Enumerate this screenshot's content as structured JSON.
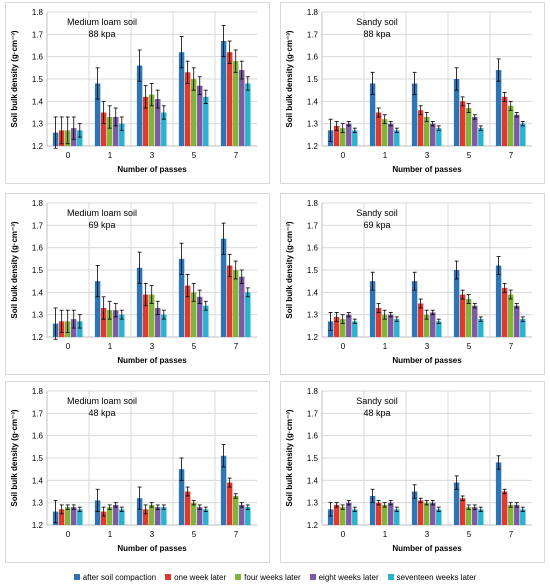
{
  "colors": [
    "#2e75b6",
    "#e03a2f",
    "#7fb539",
    "#7d5aa6",
    "#2ab3cf"
  ],
  "legend": [
    "after soil compaction",
    "one week later",
    "four weeks later",
    "eight weeks later",
    "seventeen weeks later"
  ],
  "chart_data": [
    {
      "type": "bar",
      "title_line1": "Medium loam soil",
      "title_line2": "88 kpa",
      "xlabel": "Number of passes",
      "ylabel": "Soil bulk density (g·cm⁻³)",
      "ylim": [
        1.2,
        1.8
      ],
      "yticks": [
        1.2,
        1.3,
        1.4,
        1.5,
        1.6,
        1.7,
        1.8
      ],
      "categories": [
        "0",
        "1",
        "3",
        "5",
        "7"
      ],
      "grid": true,
      "series": [
        {
          "name": "after soil compaction",
          "values": [
            1.26,
            1.48,
            1.56,
            1.62,
            1.67
          ],
          "errors": [
            0.07,
            0.07,
            0.07,
            0.07,
            0.07
          ]
        },
        {
          "name": "one week later",
          "values": [
            1.27,
            1.35,
            1.42,
            1.53,
            1.62
          ],
          "errors": [
            0.06,
            0.05,
            0.05,
            0.05,
            0.05
          ]
        },
        {
          "name": "four weeks later",
          "values": [
            1.27,
            1.33,
            1.43,
            1.5,
            1.58
          ],
          "errors": [
            0.06,
            0.05,
            0.05,
            0.05,
            0.05
          ]
        },
        {
          "name": "eight weeks later",
          "values": [
            1.28,
            1.33,
            1.41,
            1.47,
            1.54
          ],
          "errors": [
            0.05,
            0.04,
            0.04,
            0.04,
            0.04
          ]
        },
        {
          "name": "seventeen weeks later",
          "values": [
            1.27,
            1.3,
            1.35,
            1.42,
            1.48
          ],
          "errors": [
            0.03,
            0.03,
            0.03,
            0.03,
            0.03
          ]
        }
      ]
    },
    {
      "type": "bar",
      "title_line1": "Sandy soil",
      "title_line2": "88 kpa",
      "xlabel": "Number of passes",
      "ylabel": "Soil bulk density (g·cm⁻³)",
      "ylim": [
        1.2,
        1.8
      ],
      "yticks": [
        1.2,
        1.3,
        1.4,
        1.5,
        1.6,
        1.7,
        1.8
      ],
      "categories": [
        "0",
        "1",
        "3",
        "5",
        "7"
      ],
      "grid": true,
      "series": [
        {
          "name": "after soil compaction",
          "values": [
            1.27,
            1.48,
            1.48,
            1.5,
            1.54
          ],
          "errors": [
            0.05,
            0.05,
            0.05,
            0.05,
            0.05
          ]
        },
        {
          "name": "one week later",
          "values": [
            1.29,
            1.35,
            1.36,
            1.4,
            1.42
          ],
          "errors": [
            0.02,
            0.02,
            0.02,
            0.02,
            0.02
          ]
        },
        {
          "name": "four weeks later",
          "values": [
            1.28,
            1.32,
            1.33,
            1.37,
            1.38
          ],
          "errors": [
            0.02,
            0.02,
            0.02,
            0.02,
            0.02
          ]
        },
        {
          "name": "eight weeks later",
          "values": [
            1.3,
            1.3,
            1.3,
            1.33,
            1.34
          ],
          "errors": [
            0.01,
            0.01,
            0.01,
            0.01,
            0.01
          ]
        },
        {
          "name": "seventeen weeks later",
          "values": [
            1.27,
            1.27,
            1.28,
            1.28,
            1.3
          ],
          "errors": [
            0.01,
            0.01,
            0.01,
            0.01,
            0.01
          ]
        }
      ]
    },
    {
      "type": "bar",
      "title_line1": "Medium loam soil",
      "title_line2": "69 kpa",
      "xlabel": "Number of passes",
      "ylabel": "Soil bulk density (g·cm⁻³)",
      "ylim": [
        1.2,
        1.8
      ],
      "yticks": [
        1.2,
        1.3,
        1.4,
        1.5,
        1.6,
        1.7,
        1.8
      ],
      "categories": [
        "0",
        "1",
        "3",
        "5",
        "7"
      ],
      "grid": true,
      "series": [
        {
          "name": "after soil compaction",
          "values": [
            1.26,
            1.45,
            1.51,
            1.55,
            1.64
          ],
          "errors": [
            0.07,
            0.07,
            0.07,
            0.07,
            0.07
          ]
        },
        {
          "name": "one week later",
          "values": [
            1.27,
            1.33,
            1.39,
            1.43,
            1.52
          ],
          "errors": [
            0.05,
            0.05,
            0.05,
            0.05,
            0.05
          ]
        },
        {
          "name": "four weeks later",
          "values": [
            1.27,
            1.32,
            1.39,
            1.4,
            1.5
          ],
          "errors": [
            0.05,
            0.04,
            0.04,
            0.04,
            0.04
          ]
        },
        {
          "name": "eight weeks later",
          "values": [
            1.28,
            1.32,
            1.33,
            1.38,
            1.47
          ],
          "errors": [
            0.04,
            0.03,
            0.03,
            0.03,
            0.03
          ]
        },
        {
          "name": "seventeen weeks later",
          "values": [
            1.27,
            1.3,
            1.3,
            1.34,
            1.4
          ],
          "errors": [
            0.03,
            0.02,
            0.02,
            0.02,
            0.02
          ]
        }
      ]
    },
    {
      "type": "bar",
      "title_line1": "Sandy soil",
      "title_line2": "69 kpa",
      "xlabel": "Number of passes",
      "ylabel": "Soil bulk density (g·cm⁻³)",
      "ylim": [
        1.2,
        1.8
      ],
      "yticks": [
        1.2,
        1.3,
        1.4,
        1.5,
        1.6,
        1.7,
        1.8
      ],
      "categories": [
        "0",
        "1",
        "3",
        "5",
        "7"
      ],
      "grid": true,
      "series": [
        {
          "name": "after soil compaction",
          "values": [
            1.27,
            1.45,
            1.45,
            1.5,
            1.52
          ],
          "errors": [
            0.04,
            0.04,
            0.04,
            0.04,
            0.04
          ]
        },
        {
          "name": "one week later",
          "values": [
            1.29,
            1.33,
            1.35,
            1.39,
            1.42
          ],
          "errors": [
            0.02,
            0.02,
            0.02,
            0.02,
            0.02
          ]
        },
        {
          "name": "four weeks later",
          "values": [
            1.28,
            1.3,
            1.3,
            1.37,
            1.39
          ],
          "errors": [
            0.02,
            0.02,
            0.02,
            0.02,
            0.02
          ]
        },
        {
          "name": "eight weeks later",
          "values": [
            1.3,
            1.3,
            1.31,
            1.34,
            1.34
          ],
          "errors": [
            0.01,
            0.01,
            0.01,
            0.01,
            0.01
          ]
        },
        {
          "name": "seventeen weeks later",
          "values": [
            1.27,
            1.28,
            1.27,
            1.28,
            1.28
          ],
          "errors": [
            0.01,
            0.01,
            0.01,
            0.01,
            0.01
          ]
        }
      ]
    },
    {
      "type": "bar",
      "title_line1": "Medium loam soil",
      "title_line2": "48 kpa",
      "xlabel": "Number of passes",
      "ylabel": "Soil bulk density (g·cm⁻³)",
      "ylim": [
        1.2,
        1.8
      ],
      "yticks": [
        1.2,
        1.3,
        1.4,
        1.5,
        1.6,
        1.7,
        1.8
      ],
      "categories": [
        "0",
        "1",
        "3",
        "5",
        "7"
      ],
      "grid": true,
      "series": [
        {
          "name": "after soil compaction",
          "values": [
            1.26,
            1.31,
            1.32,
            1.45,
            1.51
          ],
          "errors": [
            0.05,
            0.05,
            0.05,
            0.05,
            0.05
          ]
        },
        {
          "name": "one week later",
          "values": [
            1.27,
            1.26,
            1.27,
            1.35,
            1.39
          ],
          "errors": [
            0.02,
            0.02,
            0.02,
            0.02,
            0.02
          ]
        },
        {
          "name": "four weeks later",
          "values": [
            1.28,
            1.28,
            1.29,
            1.3,
            1.33
          ],
          "errors": [
            0.01,
            0.01,
            0.01,
            0.01,
            0.01
          ]
        },
        {
          "name": "eight weeks later",
          "values": [
            1.28,
            1.29,
            1.28,
            1.28,
            1.29
          ],
          "errors": [
            0.01,
            0.01,
            0.01,
            0.01,
            0.01
          ]
        },
        {
          "name": "seventeen weeks later",
          "values": [
            1.27,
            1.27,
            1.28,
            1.27,
            1.28
          ],
          "errors": [
            0.01,
            0.01,
            0.01,
            0.01,
            0.01
          ]
        }
      ]
    },
    {
      "type": "bar",
      "title_line1": "Sandy soil",
      "title_line2": "48 kpa",
      "xlabel": "Number of passes",
      "ylabel": "Soil bulk density (g·cm⁻³)",
      "ylim": [
        1.2,
        1.8
      ],
      "yticks": [
        1.2,
        1.3,
        1.4,
        1.5,
        1.6,
        1.7,
        1.8
      ],
      "categories": [
        "0",
        "1",
        "3",
        "5",
        "7"
      ],
      "grid": true,
      "series": [
        {
          "name": "after soil compaction",
          "values": [
            1.27,
            1.33,
            1.35,
            1.39,
            1.48
          ],
          "errors": [
            0.03,
            0.03,
            0.03,
            0.03,
            0.03
          ]
        },
        {
          "name": "one week later",
          "values": [
            1.29,
            1.3,
            1.31,
            1.32,
            1.35
          ],
          "errors": [
            0.01,
            0.01,
            0.01,
            0.01,
            0.01
          ]
        },
        {
          "name": "four weeks later",
          "values": [
            1.28,
            1.29,
            1.3,
            1.28,
            1.29
          ],
          "errors": [
            0.01,
            0.01,
            0.01,
            0.01,
            0.01
          ]
        },
        {
          "name": "eight weeks later",
          "values": [
            1.3,
            1.3,
            1.3,
            1.28,
            1.29
          ],
          "errors": [
            0.01,
            0.01,
            0.01,
            0.01,
            0.01
          ]
        },
        {
          "name": "seventeen weeks later",
          "values": [
            1.27,
            1.27,
            1.27,
            1.27,
            1.27
          ],
          "errors": [
            0.01,
            0.01,
            0.01,
            0.01,
            0.01
          ]
        }
      ]
    }
  ]
}
